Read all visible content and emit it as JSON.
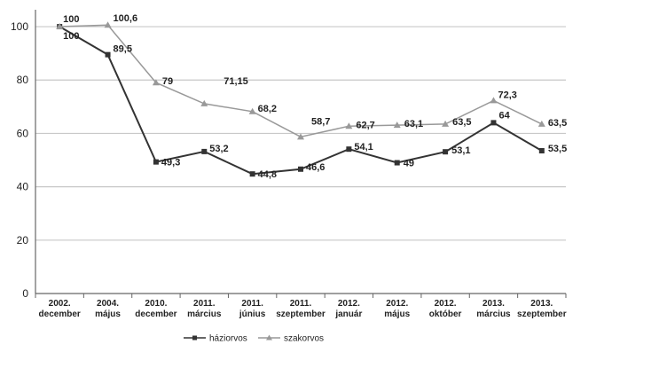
{
  "chart_data": {
    "type": "line",
    "title": "",
    "xlabel": "",
    "ylabel": "",
    "categories": [
      [
        "2002.",
        "december"
      ],
      [
        "2004.",
        "május"
      ],
      [
        "2010.",
        "december"
      ],
      [
        "2011.",
        "március"
      ],
      [
        "2011.",
        "június"
      ],
      [
        "2011.",
        "szeptember"
      ],
      [
        "2012.",
        "január"
      ],
      [
        "2012.",
        "május"
      ],
      [
        "2012.",
        "október"
      ],
      [
        "2013.",
        "március"
      ],
      [
        "2013.",
        "szeptember"
      ]
    ],
    "y_ticks": [
      "0",
      "20",
      "40",
      "60",
      "80",
      "100"
    ],
    "ylim": [
      0,
      105
    ],
    "grid": true,
    "legend_position": "bottom",
    "series": [
      {
        "name": "háziorvos",
        "color": "#333333",
        "marker": "square",
        "values": [
          100,
          89.5,
          49.3,
          53.2,
          44.8,
          46.6,
          54.1,
          49,
          53.1,
          64,
          53.5
        ],
        "labels": [
          "100",
          "89,5",
          "49,3",
          "53,2",
          "44,8",
          "46,6",
          "54,1",
          "49",
          "53,1",
          "64",
          "53,5"
        ]
      },
      {
        "name": "szakorvos",
        "color": "#999999",
        "marker": "triangle",
        "values": [
          100,
          100.6,
          79,
          71.15,
          68.2,
          58.7,
          62.7,
          63.1,
          63.5,
          72.3,
          63.5
        ],
        "labels": [
          "100",
          "100,6",
          "79",
          "71,15",
          "68,2",
          "58,7",
          "62,7",
          "63,1",
          "63,5",
          "72,3",
          "63,5"
        ]
      }
    ]
  }
}
